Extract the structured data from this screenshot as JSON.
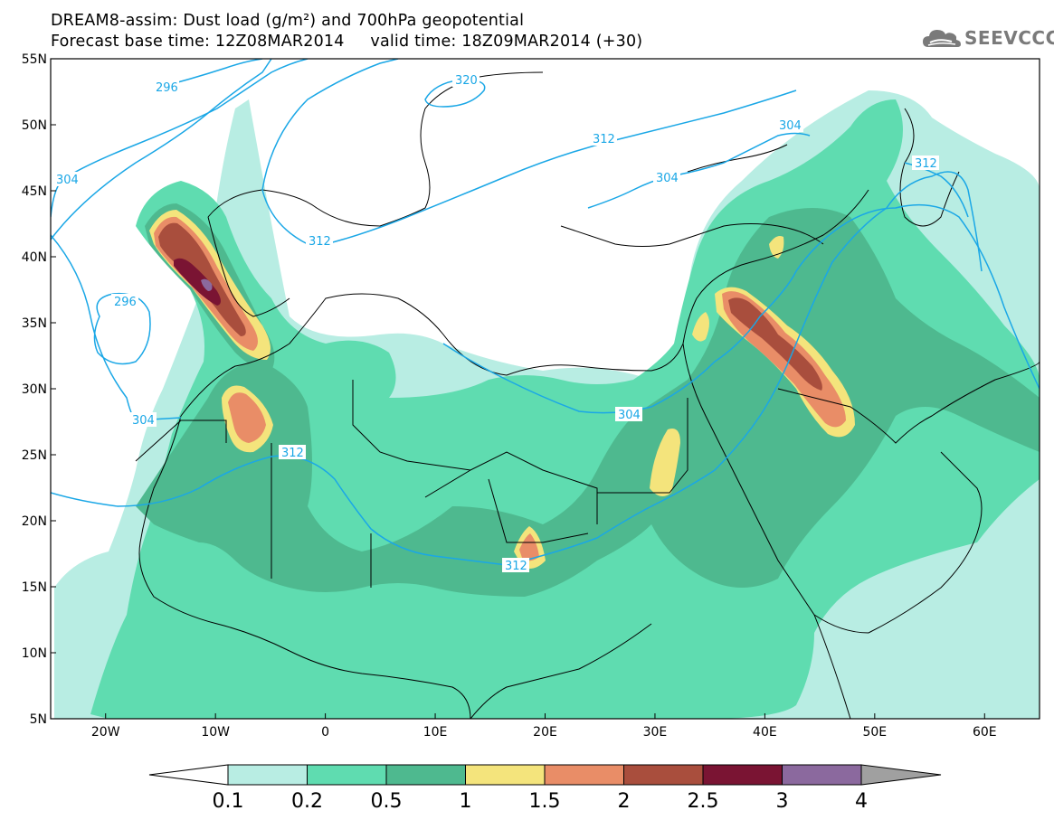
{
  "title": {
    "line1": "DREAM8-assim: Dust load (g/m²) and 700hPa geopotential",
    "line2": "Forecast base time: 12Z08MAR2014     valid time: 18Z09MAR2014 (+30)"
  },
  "logo": {
    "text": "SEEVCCC",
    "icon": "cloud-logo-icon"
  },
  "map": {
    "lat_labels": [
      "55N",
      "50N",
      "45N",
      "40N",
      "35N",
      "30N",
      "25N",
      "20N",
      "15N",
      "10N",
      "5N"
    ],
    "lon_labels": [
      "20W",
      "10W",
      "0",
      "10E",
      "20E",
      "30E",
      "40E",
      "50E",
      "60E"
    ],
    "lat_range": [
      5,
      55
    ],
    "lon_range": [
      -25,
      65
    ],
    "contour_labels": [
      "296",
      "320",
      "304",
      "312",
      "304",
      "312",
      "296",
      "304",
      "312",
      "304",
      "312",
      "304",
      "312"
    ]
  },
  "legend": {
    "labels": [
      "0.1",
      "0.2",
      "0.5",
      "1",
      "1.5",
      "2",
      "2.5",
      "3",
      "4"
    ],
    "colors": {
      "c1": "#b8ede3",
      "c2": "#5fdcb0",
      "c3": "#4eb98f",
      "c4": "#f4e47c",
      "c5": "#e98d67",
      "c6": "#a94e3d",
      "c7": "#7a1433",
      "c8": "#8b699e",
      "over": "#a0a0a0",
      "under": "#ffffff"
    }
  },
  "colors": {
    "contour": "#1aa7e6",
    "coast": "#000000"
  }
}
